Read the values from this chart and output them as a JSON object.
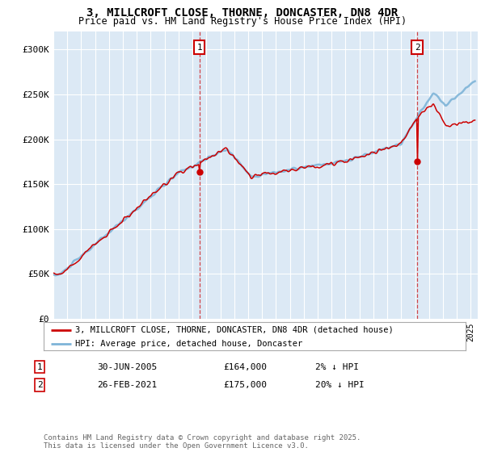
{
  "title": "3, MILLCROFT CLOSE, THORNE, DONCASTER, DN8 4DR",
  "subtitle": "Price paid vs. HM Land Registry's House Price Index (HPI)",
  "hpi_color": "#7eb4d8",
  "price_color": "#cc0000",
  "dashed_color": "#cc0000",
  "bg_color": "#dce9f5",
  "sale1_year": 2005.5,
  "sale2_year": 2021.15,
  "sale1_price": 164000,
  "sale2_price": 175000,
  "ylim": [
    0,
    320000
  ],
  "yticks": [
    0,
    50000,
    100000,
    150000,
    200000,
    250000,
    300000
  ],
  "ytick_labels": [
    "£0",
    "£50K",
    "£100K",
    "£150K",
    "£200K",
    "£250K",
    "£300K"
  ],
  "legend_entries": [
    "3, MILLCROFT CLOSE, THORNE, DONCASTER, DN8 4DR (detached house)",
    "HPI: Average price, detached house, Doncaster"
  ],
  "table_entries": [
    {
      "num": "1",
      "date": "30-JUN-2005",
      "price": "£164,000",
      "pct": "2% ↓ HPI"
    },
    {
      "num": "2",
      "date": "26-FEB-2021",
      "price": "£175,000",
      "pct": "20% ↓ HPI"
    }
  ],
  "footer": "Contains HM Land Registry data © Crown copyright and database right 2025.\nThis data is licensed under the Open Government Licence v3.0.",
  "xmin": 1995.0,
  "xmax": 2025.5
}
